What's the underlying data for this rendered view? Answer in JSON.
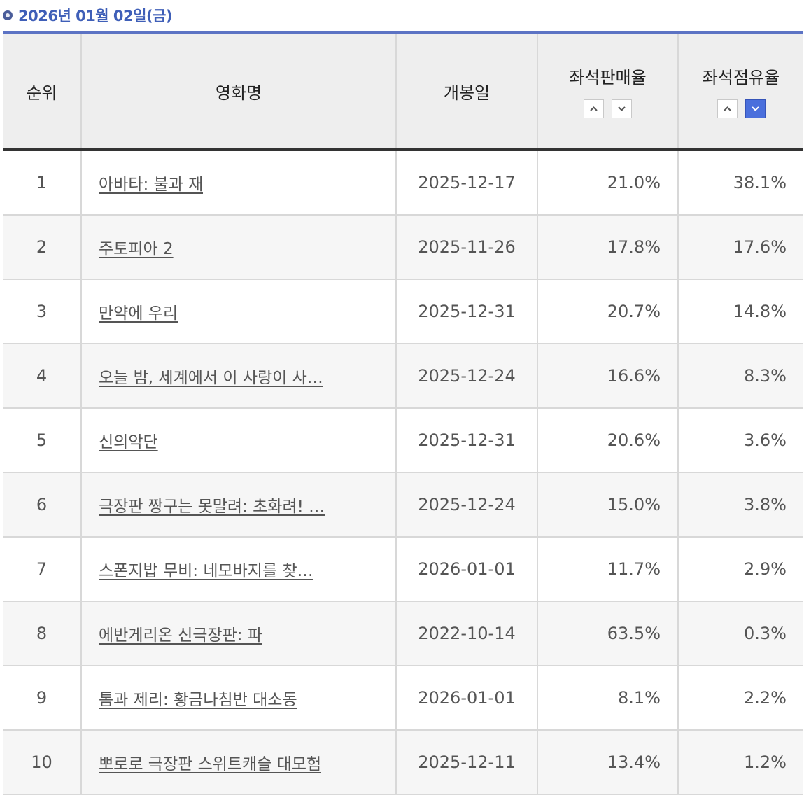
{
  "header": {
    "date": "2026년 01월 02일(금)"
  },
  "columns": {
    "rank": "순위",
    "title": "영화명",
    "open_date": "개봉일",
    "seat_sales": "좌석판매율",
    "seat_share": "좌석점유율"
  },
  "sort": {
    "up_icon": "chevron-up-icon",
    "down_icon": "chevron-down-icon",
    "active_column": "좌석점유율",
    "active_direction": "down",
    "active_color": "#4a6fdc"
  },
  "rows": [
    {
      "rank": "1",
      "title": "아바타: 불과 재",
      "open_date": "2025-12-17",
      "seat_sales": "21.0%",
      "seat_share": "38.1%"
    },
    {
      "rank": "2",
      "title": "주토피아 2",
      "open_date": "2025-11-26",
      "seat_sales": "17.8%",
      "seat_share": "17.6%"
    },
    {
      "rank": "3",
      "title": "만약에 우리",
      "open_date": "2025-12-31",
      "seat_sales": "20.7%",
      "seat_share": "14.8%"
    },
    {
      "rank": "4",
      "title": "오늘 밤, 세계에서 이 사랑이 사…",
      "open_date": "2025-12-24",
      "seat_sales": "16.6%",
      "seat_share": "8.3%"
    },
    {
      "rank": "5",
      "title": "신의악단",
      "open_date": "2025-12-31",
      "seat_sales": "20.6%",
      "seat_share": "3.6%"
    },
    {
      "rank": "6",
      "title": "극장판 짱구는 못말려: 초화려! …",
      "open_date": "2025-12-24",
      "seat_sales": "15.0%",
      "seat_share": "3.8%"
    },
    {
      "rank": "7",
      "title": "스폰지밥 무비: 네모바지를 찾…",
      "open_date": "2026-01-01",
      "seat_sales": "11.7%",
      "seat_share": "2.9%"
    },
    {
      "rank": "8",
      "title": "에반게리온 신극장판: 파",
      "open_date": "2022-10-14",
      "seat_sales": "63.5%",
      "seat_share": "0.3%"
    },
    {
      "rank": "9",
      "title": "톰과 제리: 황금나침반 대소동",
      "open_date": "2026-01-01",
      "seat_sales": "8.1%",
      "seat_share": "2.2%"
    },
    {
      "rank": "10",
      "title": "뽀로로 극장판 스위트캐슬 대모험",
      "open_date": "2025-12-11",
      "seat_sales": "13.4%",
      "seat_share": "1.2%"
    }
  ]
}
